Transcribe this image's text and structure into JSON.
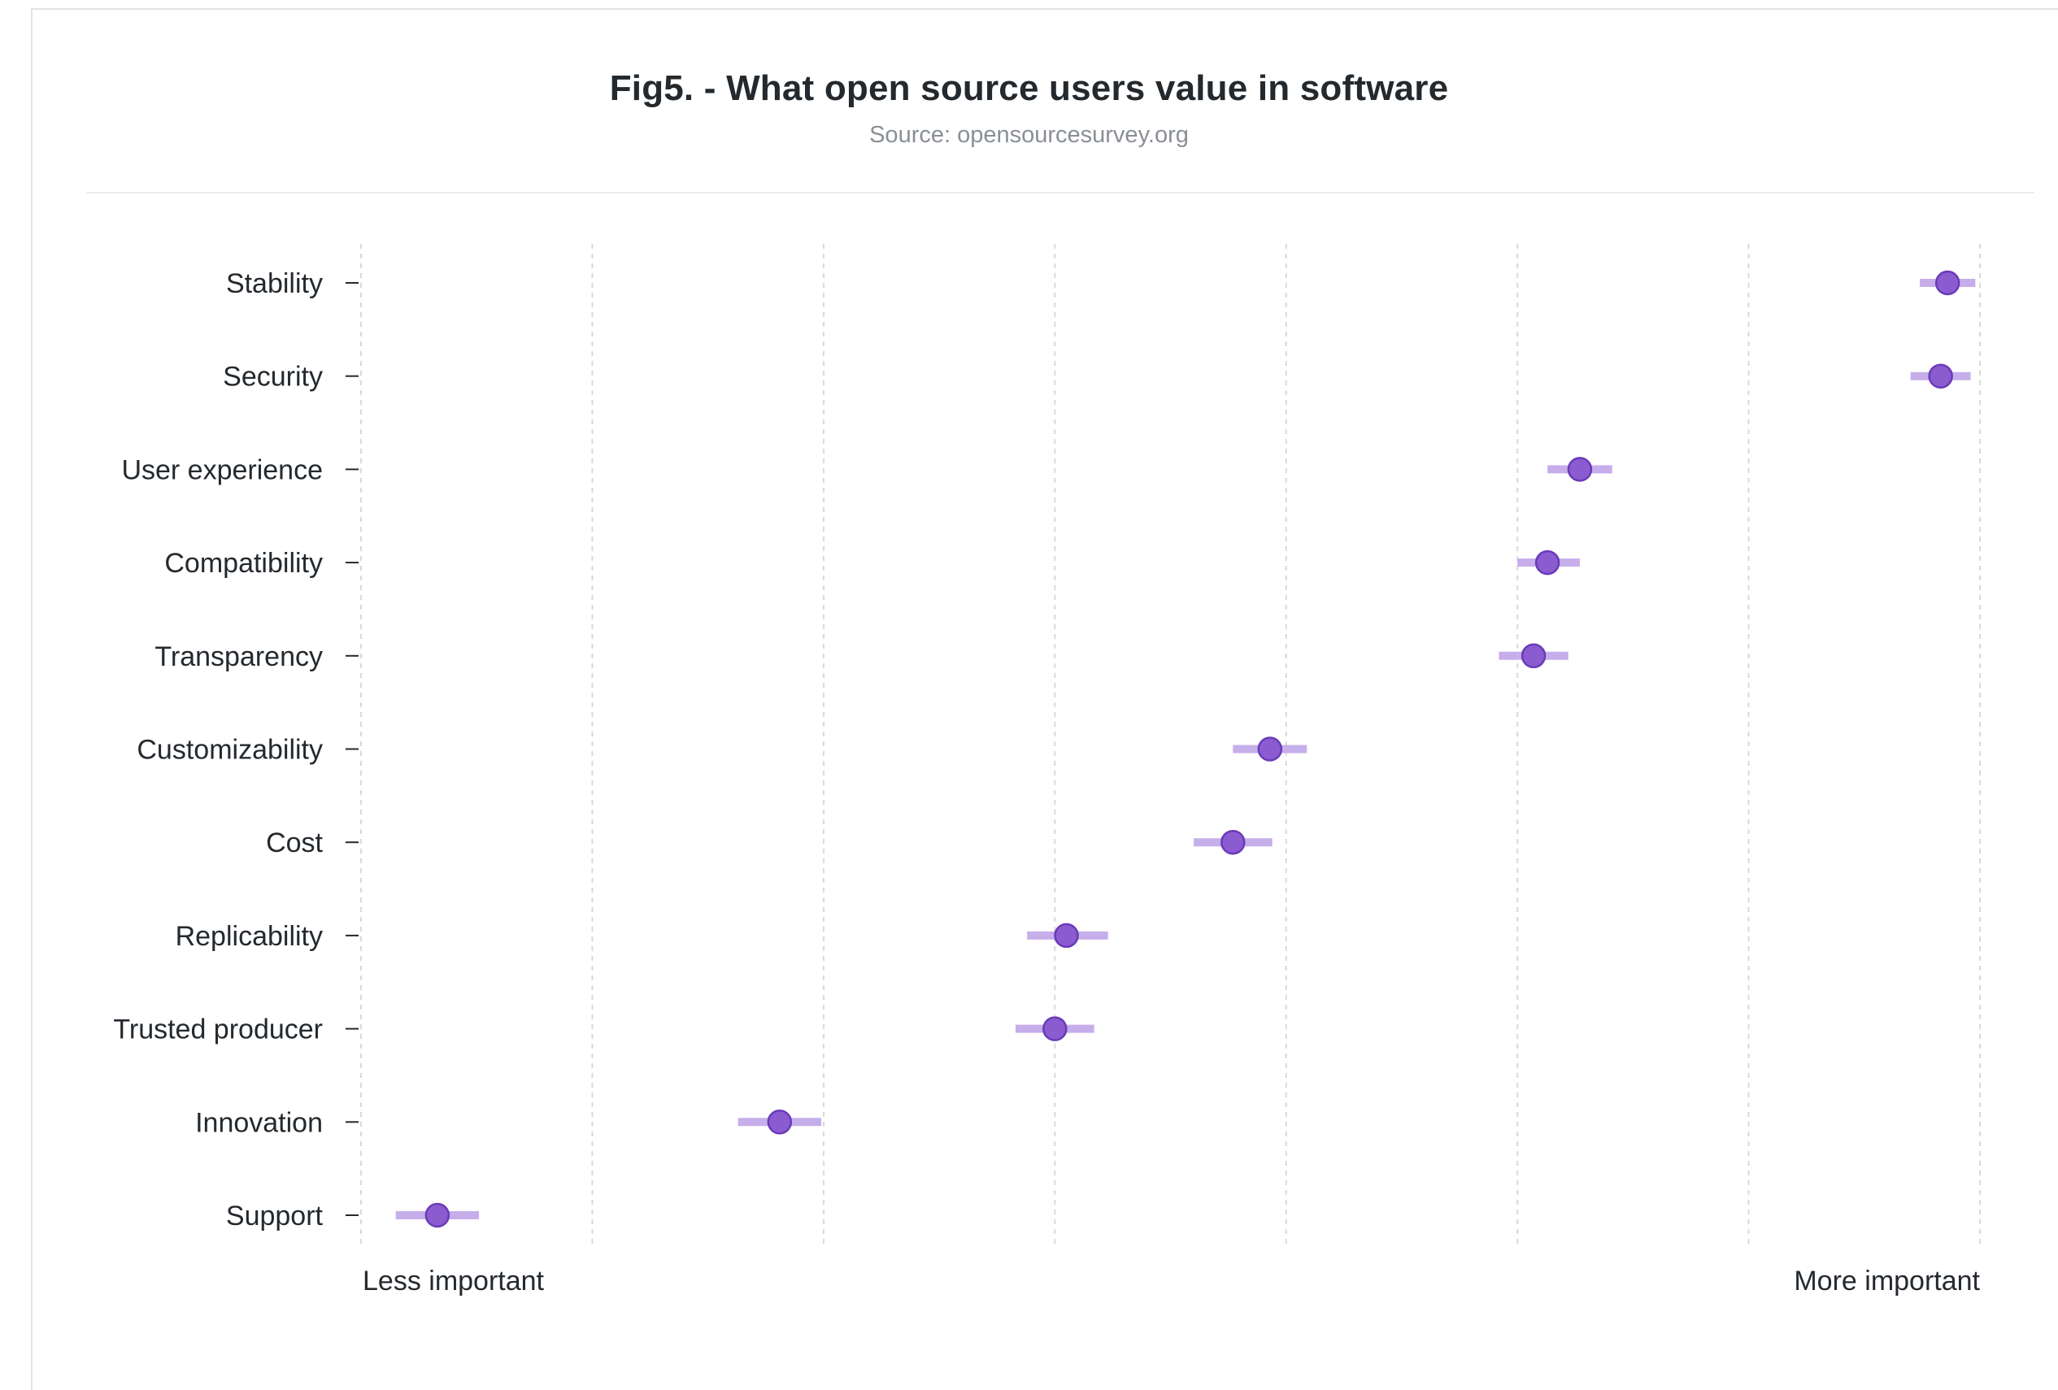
{
  "header": {
    "title": "Fig5. - What open source users value in software",
    "subtitle": "Source: opensourcesurvey.org"
  },
  "colors": {
    "point": "#8a5cd0",
    "point_stroke": "#6a3bb8",
    "interval": "#c6aeea",
    "grid": "#d9d9d9",
    "axis": "#24292e"
  },
  "chart_data": {
    "type": "scatter",
    "title": "Fig5. - What open source users value in software",
    "subtitle": "Source: opensourcesurvey.org",
    "x_axis": {
      "min_label": "Less important",
      "max_label": "More important",
      "range": [
        0,
        7
      ],
      "gridlines": [
        0,
        1,
        2,
        3,
        4,
        5,
        6,
        7
      ]
    },
    "grid": "vertical-dashed",
    "categories": [
      "Stability",
      "Security",
      "User experience",
      "Compatibility",
      "Transparency",
      "Customizability",
      "Cost",
      "Replicability",
      "Trusted producer",
      "Innovation",
      "Support"
    ],
    "points": [
      {
        "label": "Stability",
        "value": 6.86,
        "low": 6.74,
        "high": 6.98
      },
      {
        "label": "Security",
        "value": 6.83,
        "low": 6.7,
        "high": 6.96
      },
      {
        "label": "User experience",
        "value": 5.27,
        "low": 5.13,
        "high": 5.41
      },
      {
        "label": "Compatibility",
        "value": 5.13,
        "low": 5.0,
        "high": 5.27
      },
      {
        "label": "Transparency",
        "value": 5.07,
        "low": 4.92,
        "high": 5.22
      },
      {
        "label": "Customizability",
        "value": 3.93,
        "low": 3.77,
        "high": 4.09
      },
      {
        "label": "Cost",
        "value": 3.77,
        "low": 3.6,
        "high": 3.94
      },
      {
        "label": "Replicability",
        "value": 3.05,
        "low": 2.88,
        "high": 3.23
      },
      {
        "label": "Trusted producer",
        "value": 3.0,
        "low": 2.83,
        "high": 3.17
      },
      {
        "label": "Innovation",
        "value": 1.81,
        "low": 1.63,
        "high": 1.99
      },
      {
        "label": "Support",
        "value": 0.33,
        "low": 0.15,
        "high": 0.51
      }
    ]
  }
}
